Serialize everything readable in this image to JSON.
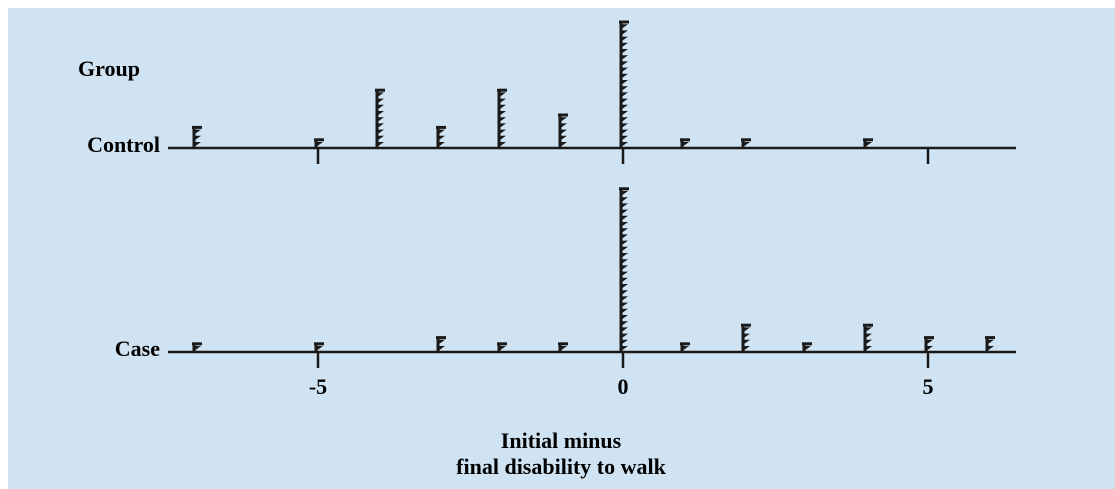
{
  "chart_data": {
    "type": "scatter",
    "subtype": "dot-plot",
    "axis_title": "Group",
    "xlabel_lines": [
      "Initial minus",
      "final disability to walk"
    ],
    "xlim": [
      -7.3,
      6.6
    ],
    "xticks": [
      -5,
      0,
      5
    ],
    "xtick_labels": [
      "-5",
      "0",
      "5"
    ],
    "grid": false,
    "colors": {
      "background": "#cfe3f2",
      "ink": "#1a1a1a"
    },
    "groups": [
      {
        "name": "Control",
        "counts": [
          {
            "x": -7,
            "n": 3
          },
          {
            "x": -5,
            "n": 1
          },
          {
            "x": -4,
            "n": 9
          },
          {
            "x": -3,
            "n": 3
          },
          {
            "x": -2,
            "n": 9
          },
          {
            "x": -1,
            "n": 5
          },
          {
            "x": 0,
            "n": 20
          },
          {
            "x": 1,
            "n": 1
          },
          {
            "x": 2,
            "n": 1
          },
          {
            "x": 4,
            "n": 1
          },
          {
            "x": 5,
            "n": 0
          }
        ]
      },
      {
        "name": "Case",
        "counts": [
          {
            "x": -7,
            "n": 1
          },
          {
            "x": -5,
            "n": 1
          },
          {
            "x": -3,
            "n": 2
          },
          {
            "x": -2,
            "n": 1
          },
          {
            "x": -1,
            "n": 1
          },
          {
            "x": 0,
            "n": 26
          },
          {
            "x": 1,
            "n": 1
          },
          {
            "x": 2,
            "n": 4
          },
          {
            "x": 3,
            "n": 1
          },
          {
            "x": 4,
            "n": 4
          },
          {
            "x": 5,
            "n": 2
          },
          {
            "x": 6,
            "n": 2
          }
        ]
      }
    ]
  }
}
